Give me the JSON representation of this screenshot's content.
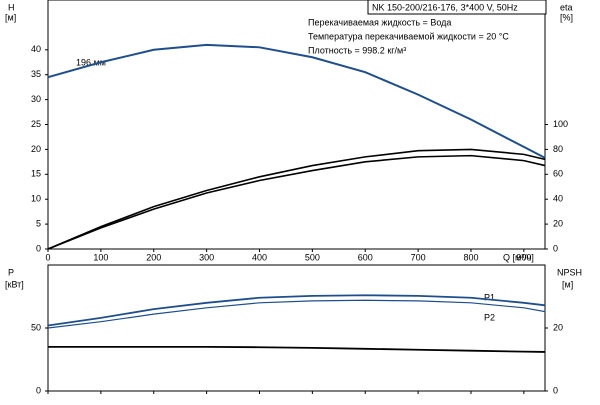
{
  "chart_data": [
    {
      "type": "line",
      "title": "NK 150-200/216-176, 3*400 V, 50Hz",
      "annotations": [
        "Перекачиваемая жидкость = Вода",
        "Температура перекачиваемой жидкости = 20 °C",
        "Плотность = 998.2 кг/м³"
      ],
      "curve_label": "196 мм",
      "x_label": "Q [м³/ч]",
      "y_label": [
        "H",
        "[м]"
      ],
      "y2_label": [
        "eta",
        "[%]"
      ],
      "x": [
        0,
        100,
        200,
        300,
        400,
        500,
        600,
        700,
        800,
        900,
        940
      ],
      "xlim": [
        0,
        940
      ],
      "xticks": [
        0,
        100,
        200,
        300,
        400,
        500,
        600,
        700,
        800,
        900
      ],
      "ylim": [
        0,
        50
      ],
      "yticks": [
        0,
        5,
        10,
        15,
        20,
        25,
        30,
        35,
        40
      ],
      "y2lim": [
        0,
        200
      ],
      "y2ticks": [
        0,
        20,
        40,
        60,
        80,
        100
      ],
      "series": [
        {
          "color": "#1f4e8c",
          "values": [
            34.5,
            37.5,
            40,
            41,
            40.5,
            38.5,
            35.5,
            31,
            26,
            20.5,
            18.3
          ]
        },
        {
          "color": "#000000",
          "axis": "y2",
          "values": [
            0,
            18,
            34,
            47,
            58,
            67,
            74,
            79,
            80,
            76,
            72
          ]
        },
        {
          "color": "#000000",
          "axis": "y2",
          "values": [
            0,
            17,
            32,
            45,
            55,
            63,
            70,
            74,
            75,
            71,
            67
          ]
        }
      ]
    },
    {
      "type": "line",
      "y_label": [
        "P",
        "[кВт]"
      ],
      "y2_label": [
        "NPSH",
        "[м]"
      ],
      "x": [
        0,
        100,
        200,
        300,
        400,
        500,
        600,
        700,
        800,
        900,
        940
      ],
      "xlim": [
        0,
        940
      ],
      "xticks": [
        0,
        100,
        200,
        300,
        400,
        500,
        600,
        700,
        800,
        900
      ],
      "ylim": [
        0,
        100
      ],
      "yticks": [
        0,
        50
      ],
      "y2lim": [
        0,
        40
      ],
      "y2ticks": [
        0,
        20
      ],
      "series": [
        {
          "name": "P1",
          "color": "#1f4e8c",
          "values": [
            52,
            58,
            65,
            70,
            74,
            75.5,
            76,
            75.5,
            74,
            70,
            68
          ]
        },
        {
          "name": "P2",
          "color": "#1f4e8c",
          "values": [
            50,
            55,
            61,
            66,
            70,
            71.5,
            72,
            71.5,
            70,
            66,
            63
          ]
        },
        {
          "color": "#000000",
          "axis": "y2",
          "values": [
            14,
            14,
            14,
            14,
            13.9,
            13.7,
            13.4,
            13.1,
            12.8,
            12.5,
            12.4
          ]
        }
      ]
    }
  ]
}
